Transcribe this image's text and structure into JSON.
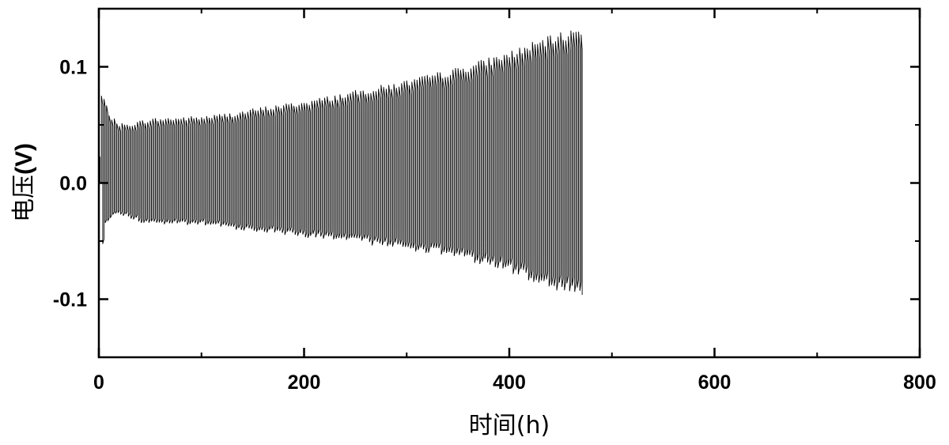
{
  "chart_data": {
    "type": "line",
    "title": "",
    "xlabel": "时间(h)",
    "ylabel_text": "电压",
    "ylabel_unit": "(V)",
    "xlim": [
      0,
      800
    ],
    "ylim": [
      -0.15,
      0.15
    ],
    "x_ticks": [
      0,
      200,
      400,
      600,
      800
    ],
    "x_tick_labels": [
      "0",
      "200",
      "400",
      "600",
      "800"
    ],
    "x_minor_ticks": [
      100,
      300,
      500,
      700
    ],
    "y_ticks": [
      -0.1,
      0.0,
      0.1
    ],
    "y_tick_labels": [
      "-0.1",
      "0.0",
      "0.1"
    ],
    "y_minor_ticks": [
      -0.05,
      0.05
    ],
    "grid": false,
    "series": [
      {
        "color": "#000000",
        "cycle_period_h": 2.5,
        "x_end": 471,
        "upper_envelope": {
          "x": [
            0,
            1,
            3,
            5,
            8,
            12,
            18,
            25,
            35,
            50,
            70,
            100,
            130,
            160,
            200,
            250,
            300,
            350,
            400,
            430,
            450,
            471
          ],
          "y": [
            0.025,
            0.07,
            0.08,
            0.074,
            0.066,
            0.058,
            0.053,
            0.051,
            0.053,
            0.056,
            0.057,
            0.058,
            0.061,
            0.066,
            0.071,
            0.08,
            0.089,
            0.1,
            0.114,
            0.124,
            0.13,
            0.136
          ]
        },
        "lower_envelope": {
          "x": [
            0,
            1,
            3,
            5,
            10,
            20,
            30,
            40,
            60,
            100,
            150,
            200,
            250,
            300,
            350,
            400,
            430,
            450,
            471
          ],
          "y": [
            0.0,
            -0.075,
            -0.045,
            -0.036,
            -0.03,
            -0.028,
            -0.031,
            -0.035,
            -0.036,
            -0.037,
            -0.042,
            -0.047,
            -0.052,
            -0.058,
            -0.065,
            -0.078,
            -0.088,
            -0.094,
            -0.1
          ]
        }
      }
    ]
  }
}
